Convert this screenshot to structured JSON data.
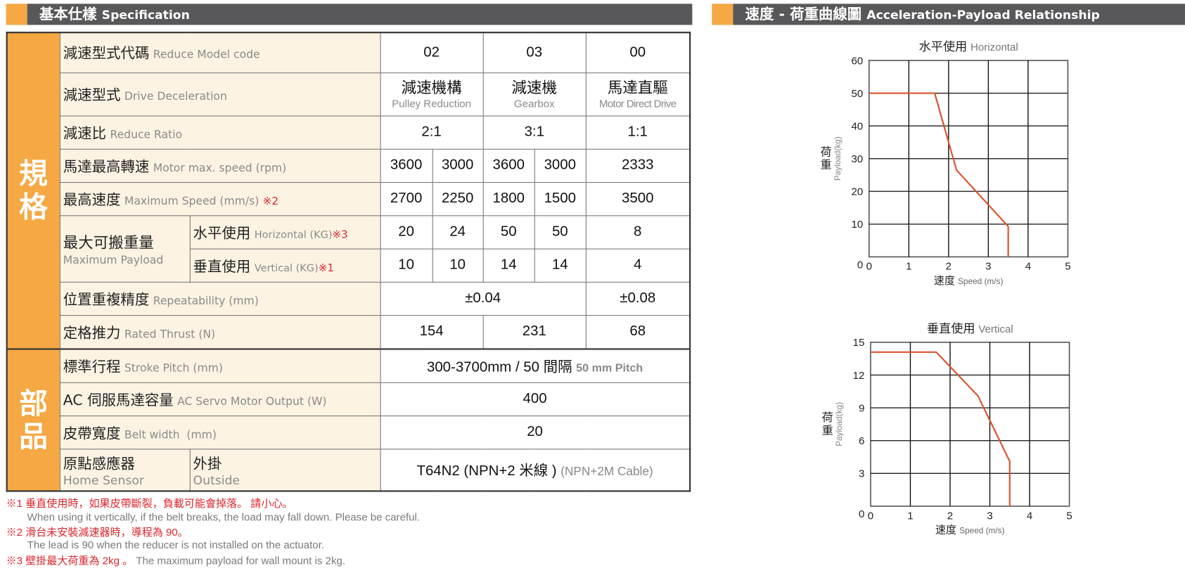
{
  "spec_header": {
    "zh": "基本仕樣",
    "en": "Specification"
  },
  "chart_header": {
    "zh": "速度 - 荷重曲線圖",
    "en": "Acceleration-Payload Relationship"
  },
  "groups": [
    "規格",
    "部品"
  ],
  "rows": {
    "model_code": {
      "zh": "減速型式代碼",
      "en": "Reduce Model code",
      "values": [
        "02",
        "03",
        "00"
      ]
    },
    "drive": {
      "zh": "減速型式",
      "en": "Drive Deceleration",
      "values": [
        {
          "zh": "減速機構",
          "en": "Pulley Reduction"
        },
        {
          "zh": "減速機",
          "en": "Gearbox"
        },
        {
          "zh": "馬達直驅",
          "en": "Motor Direct Drive"
        }
      ]
    },
    "ratio": {
      "zh": "減速比",
      "en": "Reduce Ratio",
      "values": [
        "2:1",
        "3:1",
        "1:1"
      ]
    },
    "motor_speed": {
      "zh": "馬達最高轉速",
      "en": "Motor max. speed (rpm)",
      "values": [
        "3600",
        "3000",
        "3600",
        "3000",
        "2333"
      ]
    },
    "max_speed": {
      "zh": "最高速度",
      "en": "Maximum Speed (mm/s)",
      "note": "※2",
      "values": [
        "2700",
        "2250",
        "1800",
        "1500",
        "3500"
      ]
    },
    "payload": {
      "zh": "最大可搬重量",
      "en": "Maximum Payload",
      "horizontal": {
        "zh": "水平使用",
        "en": "Horizontal (KG)",
        "note": "※3",
        "values": [
          "20",
          "24",
          "50",
          "50",
          "8"
        ]
      },
      "vertical": {
        "zh": "垂直使用",
        "en": "Vertical (KG)",
        "note": "※1",
        "values": [
          "10",
          "10",
          "14",
          "14",
          "4"
        ]
      }
    },
    "repeat": {
      "zh": "位置重複精度",
      "en": "Repeatability (mm)",
      "values": [
        "±0.04",
        "±0.08"
      ]
    },
    "thrust": {
      "zh": "定格推力",
      "en": "Rated Thrust (N)",
      "values": [
        "154",
        "231",
        "68"
      ]
    },
    "stroke": {
      "zh": "標準行程",
      "en": "Stroke Pitch (mm)",
      "value": "300-3700mm / 50 間隔",
      "value_en": "50 mm Pitch"
    },
    "servo": {
      "zh": "AC 伺服馬達容量",
      "en": "AC Servo Motor Output (W)",
      "value": "400"
    },
    "belt": {
      "zh": "皮帶寬度",
      "en": "Belt width  (mm)",
      "value": "20"
    },
    "sensor": {
      "zh": "原點感應器",
      "en": "Home Sensor",
      "type_zh": "外掛",
      "type_en": "Outside",
      "value": "T64N2 (NPN+2 米線 )",
      "value_en": "(NPN+2M Cable)"
    }
  },
  "footnotes": [
    {
      "red": "※1 垂直使用時，如果皮帶斷裂，負載可能會掉落。 請小心。",
      "gray": "When using it vertically, if the belt breaks, the load may fall down. Please be careful."
    },
    {
      "red": "※2 滑台未安裝減速器時，導程為 90。",
      "gray": "The lead is 90 when the reducer is not installed on the actuator."
    },
    {
      "red": "※3 壁掛最大荷重為 2kg 。",
      "gray": "The maximum payload for wall mount is 2kg."
    }
  ],
  "chart_data": [
    {
      "type": "line",
      "title": "水平使用",
      "title_en": "Horizontal",
      "xlabel": "速度",
      "xlabel_en": "Speed (m/s)",
      "ylabel": "荷重",
      "ylabel_en": "Payload(kg)",
      "xlim": [
        0,
        5
      ],
      "ylim": [
        0,
        60
      ],
      "xticks": [
        0,
        1,
        2,
        3,
        4,
        5
      ],
      "yticks": [
        0,
        10,
        20,
        30,
        40,
        50,
        60
      ],
      "grid": true,
      "color": "#d9542b",
      "x": [
        0,
        1.65,
        2.2,
        3.5,
        3.5
      ],
      "y": [
        50,
        50,
        26.5,
        9.3,
        0
      ]
    },
    {
      "type": "line",
      "title": "垂直使用",
      "title_en": "Vertical",
      "xlabel": "速度",
      "xlabel_en": "Speed (m/s)",
      "ylabel": "荷重",
      "ylabel_en": "Payload(kg)",
      "xlim": [
        0,
        5
      ],
      "ylim": [
        0,
        15
      ],
      "xticks": [
        0,
        1,
        2,
        3,
        4,
        5
      ],
      "yticks": [
        0,
        3,
        6,
        9,
        12,
        15
      ],
      "grid": true,
      "color": "#d9542b",
      "x": [
        0,
        1.65,
        2.7,
        3.5,
        3.5
      ],
      "y": [
        14.1,
        14.1,
        10.1,
        4.1,
        0
      ]
    }
  ],
  "colors": {
    "accent": "#f5a843",
    "header_bg": "#58585a",
    "label_bg": "#fdf3e3",
    "note_red": "#d9262c",
    "curve": "#d9542b"
  }
}
